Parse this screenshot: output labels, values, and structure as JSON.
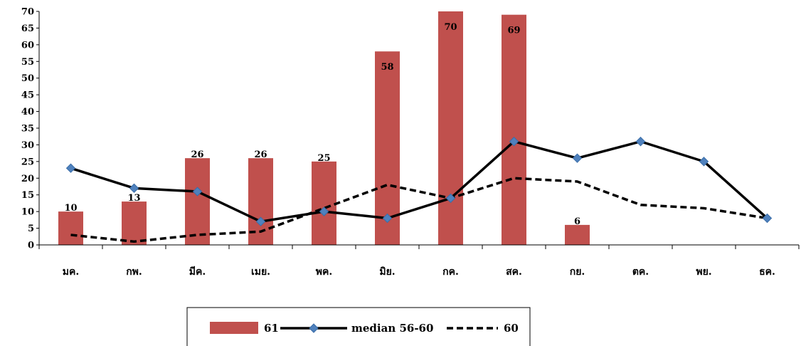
{
  "chart_data": {
    "type": "bar",
    "categories": [
      "มค.",
      "กพ.",
      "มีค.",
      "เมย.",
      "พค.",
      "มิย.",
      "กค.",
      "สค.",
      "กย.",
      "ตค.",
      "พย.",
      "ธค."
    ],
    "ylim": [
      0,
      70
    ],
    "yticks": [
      "0",
      "5",
      "10",
      "15",
      "20",
      "25",
      "30",
      "35",
      "40",
      "45",
      "50",
      "55",
      "60",
      "65",
      "70"
    ],
    "grid": false,
    "legend_position": "bottom",
    "series": [
      {
        "name": "61",
        "kind": "bar",
        "color": "#C0504D",
        "values": [
          10,
          13,
          26,
          26,
          25,
          58,
          70,
          69,
          6,
          null,
          null,
          null
        ],
        "labels": [
          "10",
          "13",
          "26",
          "26",
          "25",
          "58",
          "70",
          "69",
          "6",
          "",
          "",
          ""
        ]
      },
      {
        "name": "median 56-60",
        "kind": "line",
        "style": "solid",
        "marker": "diamond",
        "color": "#000000",
        "marker_color": "#4F81BD",
        "values": [
          23,
          17,
          16,
          7,
          10,
          8,
          14,
          31,
          26,
          31,
          25,
          8
        ]
      },
      {
        "name": "60",
        "kind": "line",
        "style": "dashed",
        "color": "#000000",
        "values": [
          3,
          1,
          3,
          4,
          11,
          18,
          14,
          20,
          19,
          12,
          11,
          8
        ]
      }
    ]
  }
}
